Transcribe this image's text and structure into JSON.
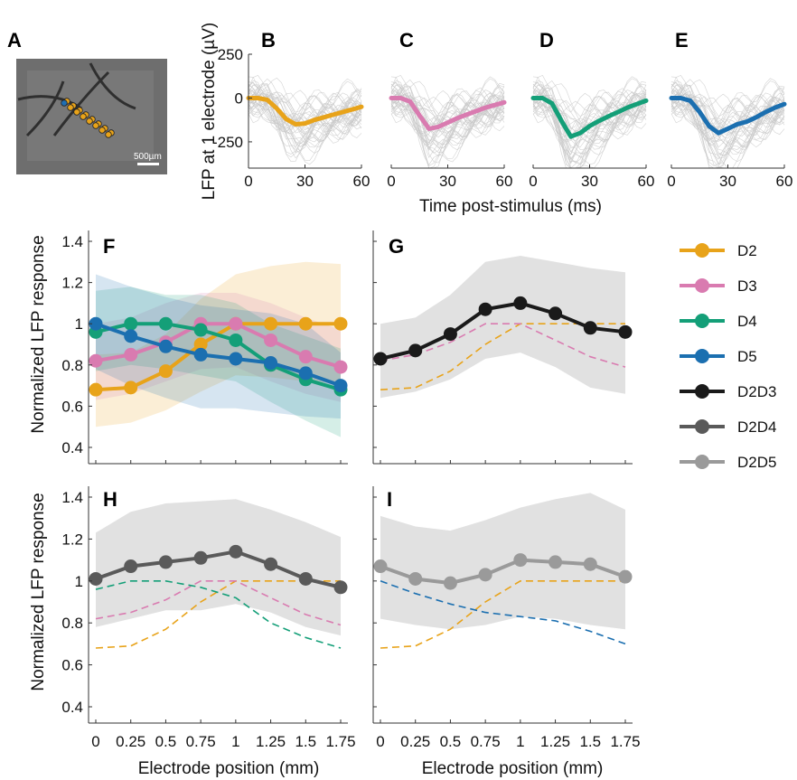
{
  "panel_labels": [
    "A",
    "B",
    "C",
    "D",
    "E",
    "F",
    "G",
    "H",
    "I"
  ],
  "photo": {
    "scale_label": "500µm",
    "electrode_colors": [
      "#1f6fb5",
      "#e8a31a"
    ]
  },
  "colors": {
    "D2": "#e8a31a",
    "D3": "#d97bb0",
    "D4": "#149f78",
    "D5": "#1b6fb0",
    "D2D3": "#1a1a1a",
    "D2D4": "#5a5a5a",
    "D2D5": "#9a9a9a",
    "trace_gray": "#c8c8c8",
    "band_gray": "#dcdcdc"
  },
  "traces": {
    "ylabel": "LFP at 1 electrode (µV)",
    "xlabel": "Time post-stimulus (ms)",
    "yticks": [
      "250",
      "0",
      "-250"
    ],
    "xticks": [
      "0",
      "30",
      "60"
    ]
  },
  "lower": {
    "ylabel": "Normalized LFP response",
    "xlabel": "Electrode position (mm)",
    "yticks": [
      "1.4",
      "1.2",
      "1",
      "0.8",
      "0.6",
      "0.4"
    ],
    "xticks": [
      "0",
      "0.25",
      "0.5",
      "0.75",
      "1",
      "1.25",
      "1.5",
      "1.75"
    ]
  },
  "legend": [
    "D2",
    "D3",
    "D4",
    "D5",
    "D2D3",
    "D2D4",
    "D2D5"
  ],
  "chart_data": [
    {
      "type": "line",
      "panel": "B",
      "x_units": "ms",
      "xlim": [
        0,
        60
      ],
      "ylim": [
        -400,
        250
      ],
      "series": [
        {
          "name": "D2",
          "x": [
            0,
            5,
            10,
            15,
            20,
            25,
            30,
            35,
            40,
            45,
            50,
            55,
            60
          ],
          "values": [
            0,
            0,
            -10,
            -60,
            -120,
            -150,
            -145,
            -125,
            -110,
            -95,
            -80,
            -65,
            -50
          ]
        }
      ]
    },
    {
      "type": "line",
      "panel": "C",
      "x_units": "ms",
      "xlim": [
        0,
        60
      ],
      "ylim": [
        -400,
        250
      ],
      "series": [
        {
          "name": "D3",
          "x": [
            0,
            5,
            10,
            15,
            20,
            25,
            30,
            35,
            40,
            45,
            50,
            55,
            60
          ],
          "values": [
            0,
            0,
            -20,
            -100,
            -175,
            -165,
            -140,
            -115,
            -95,
            -75,
            -55,
            -40,
            -25
          ]
        }
      ]
    },
    {
      "type": "line",
      "panel": "D",
      "x_units": "ms",
      "xlim": [
        0,
        60
      ],
      "ylim": [
        -400,
        250
      ],
      "series": [
        {
          "name": "D4",
          "x": [
            0,
            5,
            10,
            15,
            20,
            25,
            30,
            35,
            40,
            45,
            50,
            55,
            60
          ],
          "values": [
            0,
            0,
            -30,
            -130,
            -220,
            -200,
            -160,
            -130,
            -105,
            -80,
            -55,
            -35,
            -15
          ]
        }
      ]
    },
    {
      "type": "line",
      "panel": "E",
      "x_units": "ms",
      "xlim": [
        0,
        60
      ],
      "ylim": [
        -400,
        250
      ],
      "series": [
        {
          "name": "D5",
          "x": [
            0,
            5,
            10,
            15,
            20,
            25,
            30,
            35,
            40,
            45,
            50,
            55,
            60
          ],
          "values": [
            0,
            0,
            -15,
            -80,
            -160,
            -200,
            -175,
            -150,
            -135,
            -110,
            -80,
            -55,
            -35
          ]
        }
      ]
    },
    {
      "type": "line",
      "panel": "F",
      "x": [
        0,
        0.25,
        0.5,
        0.75,
        1,
        1.25,
        1.5,
        1.75
      ],
      "xlim": [
        -0.05,
        1.8
      ],
      "ylim": [
        0.37,
        1.45
      ],
      "series": [
        {
          "name": "D2",
          "values": [
            0.68,
            0.69,
            0.77,
            0.9,
            1.0,
            1.0,
            1.0,
            1.0
          ],
          "band_low": [
            0.5,
            0.52,
            0.58,
            0.67,
            0.75,
            0.74,
            0.72,
            0.71
          ],
          "band_high": [
            0.85,
            0.86,
            0.95,
            1.12,
            1.24,
            1.28,
            1.3,
            1.29
          ]
        },
        {
          "name": "D3",
          "values": [
            0.82,
            0.85,
            0.91,
            1.0,
            1.0,
            0.92,
            0.84,
            0.79
          ],
          "band_low": [
            0.63,
            0.66,
            0.72,
            0.78,
            0.79,
            0.72,
            0.66,
            0.62
          ],
          "band_high": [
            1.0,
            1.03,
            1.1,
            1.15,
            1.15,
            1.1,
            1.03,
            0.97
          ]
        },
        {
          "name": "D4",
          "values": [
            0.96,
            1.0,
            1.0,
            0.97,
            0.92,
            0.8,
            0.73,
            0.68
          ],
          "band_low": [
            0.77,
            0.8,
            0.78,
            0.75,
            0.72,
            0.62,
            0.53,
            0.45
          ],
          "band_high": [
            1.16,
            1.18,
            1.14,
            1.14,
            1.1,
            1.0,
            0.94,
            0.88
          ]
        },
        {
          "name": "D5",
          "values": [
            1.0,
            0.94,
            0.89,
            0.85,
            0.83,
            0.81,
            0.76,
            0.7
          ],
          "band_low": [
            0.78,
            0.7,
            0.64,
            0.59,
            0.59,
            0.57,
            0.55,
            0.54
          ],
          "band_high": [
            1.24,
            1.18,
            1.13,
            1.09,
            1.07,
            1.05,
            1.0,
            0.86
          ]
        }
      ]
    },
    {
      "type": "line",
      "panel": "G",
      "x": [
        0,
        0.25,
        0.5,
        0.75,
        1,
        1.25,
        1.5,
        1.75
      ],
      "xlim": [
        -0.05,
        1.8
      ],
      "ylim": [
        0.37,
        1.45
      ],
      "series": [
        {
          "name": "D2D3",
          "values": [
            0.83,
            0.87,
            0.95,
            1.07,
            1.1,
            1.05,
            0.98,
            0.96
          ],
          "band_low": [
            0.64,
            0.67,
            0.73,
            0.83,
            0.86,
            0.79,
            0.69,
            0.66
          ],
          "band_high": [
            1.0,
            1.03,
            1.14,
            1.3,
            1.33,
            1.3,
            1.27,
            1.25
          ]
        },
        {
          "name": "D2",
          "values": [
            0.68,
            0.69,
            0.77,
            0.9,
            1.0,
            1.0,
            1.0,
            1.0
          ],
          "dashed": true
        },
        {
          "name": "D3",
          "values": [
            0.82,
            0.85,
            0.91,
            1.0,
            1.0,
            0.92,
            0.84,
            0.79
          ],
          "dashed": true
        }
      ]
    },
    {
      "type": "line",
      "panel": "H",
      "x": [
        0,
        0.25,
        0.5,
        0.75,
        1,
        1.25,
        1.5,
        1.75
      ],
      "xlim": [
        -0.05,
        1.8
      ],
      "ylim": [
        0.37,
        1.45
      ],
      "series": [
        {
          "name": "D2D4",
          "values": [
            1.01,
            1.07,
            1.09,
            1.11,
            1.14,
            1.08,
            1.01,
            0.97
          ],
          "band_low": [
            0.78,
            0.82,
            0.86,
            0.86,
            0.89,
            0.85,
            0.78,
            0.74
          ],
          "band_high": [
            1.23,
            1.33,
            1.37,
            1.38,
            1.39,
            1.34,
            1.28,
            1.21
          ]
        },
        {
          "name": "D2",
          "values": [
            0.68,
            0.69,
            0.77,
            0.9,
            1.0,
            1.0,
            1.0,
            1.0
          ],
          "dashed": true
        },
        {
          "name": "D3",
          "values": [
            0.82,
            0.85,
            0.91,
            1.0,
            1.0,
            0.92,
            0.84,
            0.79
          ],
          "dashed": true
        },
        {
          "name": "D4",
          "values": [
            0.96,
            1.0,
            1.0,
            0.97,
            0.92,
            0.8,
            0.73,
            0.68
          ],
          "dashed": true
        }
      ]
    },
    {
      "type": "line",
      "panel": "I",
      "x": [
        0,
        0.25,
        0.5,
        0.75,
        1,
        1.25,
        1.5,
        1.75
      ],
      "xlim": [
        -0.05,
        1.8
      ],
      "ylim": [
        0.37,
        1.45
      ],
      "series": [
        {
          "name": "D2D5",
          "values": [
            1.07,
            1.01,
            0.99,
            1.03,
            1.1,
            1.09,
            1.08,
            1.02
          ],
          "band_low": [
            0.82,
            0.79,
            0.77,
            0.79,
            0.83,
            0.82,
            0.79,
            0.77
          ],
          "band_high": [
            1.31,
            1.26,
            1.24,
            1.29,
            1.35,
            1.39,
            1.42,
            1.34
          ]
        },
        {
          "name": "D2",
          "values": [
            0.68,
            0.69,
            0.77,
            0.9,
            1.0,
            1.0,
            1.0,
            1.0
          ],
          "dashed": true
        },
        {
          "name": "D5",
          "values": [
            1.0,
            0.94,
            0.89,
            0.85,
            0.83,
            0.81,
            0.76,
            0.7
          ],
          "dashed": true
        }
      ]
    }
  ]
}
